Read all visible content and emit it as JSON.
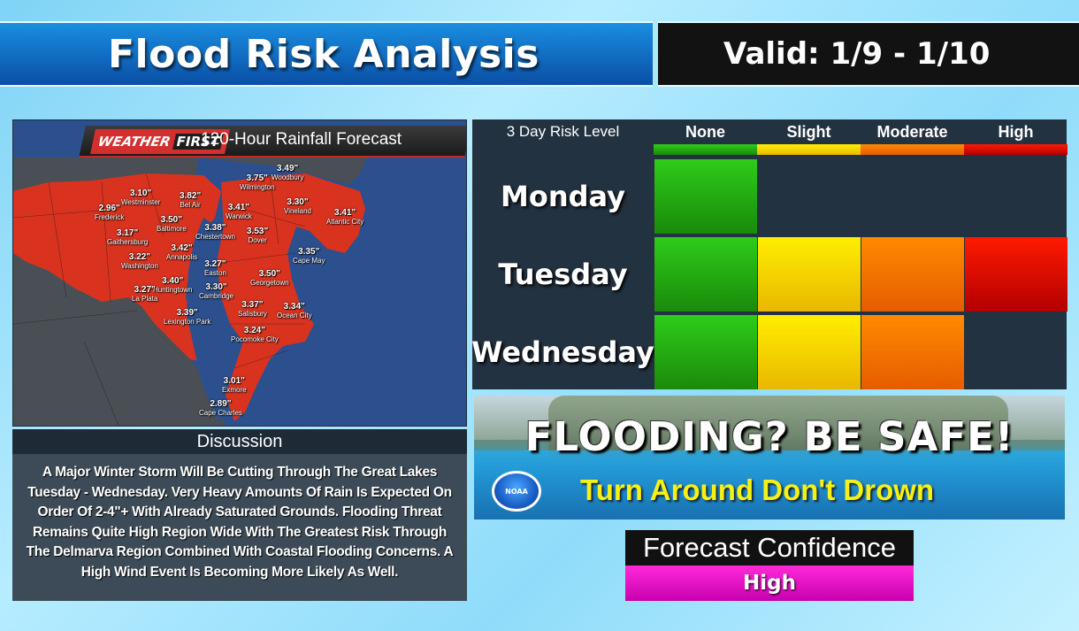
{
  "header": {
    "title": "Flood Risk Analysis",
    "valid": "Valid: 1/9 - 1/10"
  },
  "map": {
    "brand_weather": "WEATHER",
    "brand_first": "FIRST",
    "title": "120-Hour Rainfall Forecast",
    "points": [
      {
        "value": "3.49\"",
        "city": "Woodbury"
      },
      {
        "value": "3.75\"",
        "city": "Wilmington"
      },
      {
        "value": "3.10\"",
        "city": "Westminster"
      },
      {
        "value": "3.82\"",
        "city": "Bel Air"
      },
      {
        "value": "2.96\"",
        "city": "Frederick"
      },
      {
        "value": "3.41\"",
        "city": "Warwick"
      },
      {
        "value": "3.30\"",
        "city": "Vineland"
      },
      {
        "value": "3.41\"",
        "city": "Atlantic City"
      },
      {
        "value": "3.50\"",
        "city": "Baltimore"
      },
      {
        "value": "3.17\"",
        "city": "Gaithersburg"
      },
      {
        "value": "3.38\"",
        "city": "Chestertown"
      },
      {
        "value": "3.53\"",
        "city": "Dover"
      },
      {
        "value": "3.42\"",
        "city": "Annapolis"
      },
      {
        "value": "3.22\"",
        "city": "Washington"
      },
      {
        "value": "3.35\"",
        "city": "Cape May"
      },
      {
        "value": "3.27\"",
        "city": "Easton"
      },
      {
        "value": "3.40\"",
        "city": "Huntingtown"
      },
      {
        "value": "3.50\"",
        "city": "Georgetown"
      },
      {
        "value": "3.27\"",
        "city": "La Plata"
      },
      {
        "value": "3.30\"",
        "city": "Cambridge"
      },
      {
        "value": "3.37\"",
        "city": "Salisbury"
      },
      {
        "value": "3.34\"",
        "city": "Ocean City"
      },
      {
        "value": "3.39\"",
        "city": "Lexington Park"
      },
      {
        "value": "3.24\"",
        "city": "Pocomoke City"
      },
      {
        "value": "3.01\"",
        "city": "Exmore"
      },
      {
        "value": "2.89\"",
        "city": "Cape Charles"
      }
    ]
  },
  "discussion": {
    "heading": "Discussion",
    "text": "A Major Winter Storm Will Be Cutting Through The Great Lakes Tuesday - Wednesday. Very Heavy Amounts Of Rain Is Expected On Order Of 2-4\"+ With Already Saturated Grounds. Flooding Threat Remains Quite High Region Wide With The Greatest Risk Through The Delmarva Region Combined With Coastal Flooding Concerns. A High Wind Event Is Becoming More Likely As Well."
  },
  "risk": {
    "title": "3 Day Risk Level",
    "levels": [
      "None",
      "Slight",
      "Moderate",
      "High"
    ],
    "colors": {
      "none": "#2ecc1a",
      "slight": "#ffee00",
      "moderate": "#ff8a00",
      "high": "#ff1a00"
    },
    "days": [
      {
        "name": "Monday",
        "level_index": 0
      },
      {
        "name": "Tuesday",
        "level_index": 3
      },
      {
        "name": "Wednesday",
        "level_index": 2
      }
    ]
  },
  "banner": {
    "headline": "FLOODING?  BE SAFE!",
    "tagline": "Turn Around Don't Drown",
    "logo_text": "NOAA"
  },
  "confidence": {
    "label": "Forecast Confidence",
    "value": "High"
  }
}
